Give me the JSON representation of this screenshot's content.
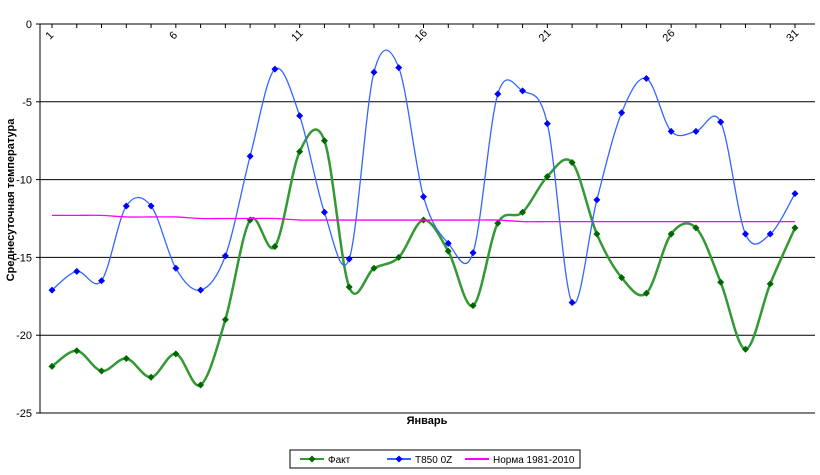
{
  "chart_data": {
    "type": "line",
    "y_label": "Среднесуточная температура",
    "x_label": "Январь",
    "categories": [
      "1",
      null,
      null,
      null,
      null,
      "6",
      null,
      null,
      null,
      null,
      "11",
      null,
      null,
      null,
      null,
      "16",
      null,
      null,
      null,
      null,
      "21",
      null,
      null,
      null,
      null,
      "26",
      null,
      null,
      null,
      null,
      "31"
    ],
    "ylim": [
      -25,
      0
    ],
    "yticks": [
      -25,
      -20,
      -15,
      -10,
      -5,
      0
    ],
    "grid": true,
    "legend": "bottom",
    "series": [
      {
        "name": "Факт",
        "color": "#339933",
        "marker_color": "#006600",
        "values": [
          -22,
          -21,
          -22.3,
          -21.5,
          -22.7,
          -21.2,
          -23.2,
          -19,
          -12.6,
          -14.3,
          -8.2,
          -7.5,
          -16.9,
          -15.7,
          -15,
          -12.6,
          -14.6,
          -18.1,
          -12.8,
          -12.1,
          -9.8,
          -8.9,
          -13.5,
          -16.3,
          -17.3,
          -13.5,
          -13.1,
          -16.6,
          -20.9,
          -16.7,
          -13.1
        ]
      },
      {
        "name": "T850 0Z",
        "color": "#3366ff",
        "marker_color": "#0000ff",
        "values": [
          -17.1,
          -15.9,
          -16.5,
          -11.7,
          -11.7,
          -15.7,
          -17.1,
          -14.9,
          -8.5,
          -2.9,
          -5.9,
          -12.1,
          -15.1,
          -3.1,
          -2.8,
          -11.1,
          -14.1,
          -14.7,
          -4.5,
          -4.3,
          -6.4,
          -17.9,
          -11.3,
          -5.7,
          -3.5,
          -6.9,
          -6.9,
          -6.3,
          -13.5,
          -13.5,
          -10.9
        ]
      },
      {
        "name": "Норма 1981-2010",
        "color": "#ff00ff",
        "marker_color": null,
        "values": [
          -12.3,
          -12.3,
          -12.3,
          -12.4,
          -12.4,
          -12.4,
          -12.5,
          -12.5,
          -12.5,
          -12.5,
          -12.6,
          -12.6,
          -12.6,
          -12.6,
          -12.6,
          -12.6,
          -12.6,
          -12.6,
          -12.6,
          -12.7,
          -12.7,
          -12.7,
          -12.7,
          -12.7,
          -12.7,
          -12.7,
          -12.7,
          -12.7,
          -12.7,
          -12.7,
          -12.7
        ]
      }
    ]
  }
}
